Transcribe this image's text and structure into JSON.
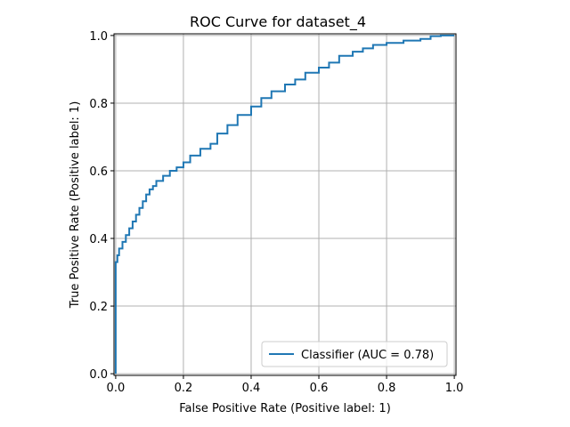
{
  "chart_data": {
    "type": "line",
    "title": "ROC Curve for dataset_4",
    "xlabel": "False Positive Rate (Positive label: 1)",
    "ylabel": "True Positive Rate (Positive label: 1)",
    "xlim": [
      -0.005,
      1.005
    ],
    "ylim": [
      -0.005,
      1.005
    ],
    "xticks": [
      "0.0",
      "0.2",
      "0.4",
      "0.6",
      "0.8",
      "1.0"
    ],
    "yticks": [
      "0.0",
      "0.2",
      "0.4",
      "0.6",
      "0.8",
      "1.0"
    ],
    "grid": true,
    "legend_position": "lower-right",
    "series": [
      {
        "name": "Classifier (AUC = 0.78)",
        "color": "#1f77b4",
        "x": [
          0.0,
          0.0,
          0.005,
          0.01,
          0.02,
          0.03,
          0.04,
          0.05,
          0.06,
          0.07,
          0.08,
          0.09,
          0.1,
          0.11,
          0.12,
          0.14,
          0.16,
          0.18,
          0.2,
          0.22,
          0.25,
          0.28,
          0.3,
          0.33,
          0.36,
          0.4,
          0.43,
          0.46,
          0.5,
          0.53,
          0.56,
          0.6,
          0.63,
          0.66,
          0.7,
          0.73,
          0.76,
          0.8,
          0.85,
          0.9,
          0.93,
          0.96,
          1.0
        ],
        "y": [
          0.0,
          0.31,
          0.33,
          0.35,
          0.37,
          0.39,
          0.41,
          0.43,
          0.45,
          0.47,
          0.49,
          0.51,
          0.53,
          0.545,
          0.555,
          0.57,
          0.585,
          0.6,
          0.61,
          0.625,
          0.645,
          0.665,
          0.68,
          0.71,
          0.735,
          0.765,
          0.79,
          0.815,
          0.835,
          0.855,
          0.87,
          0.89,
          0.905,
          0.92,
          0.94,
          0.952,
          0.962,
          0.972,
          0.978,
          0.985,
          0.99,
          0.998,
          1.0
        ]
      }
    ]
  }
}
